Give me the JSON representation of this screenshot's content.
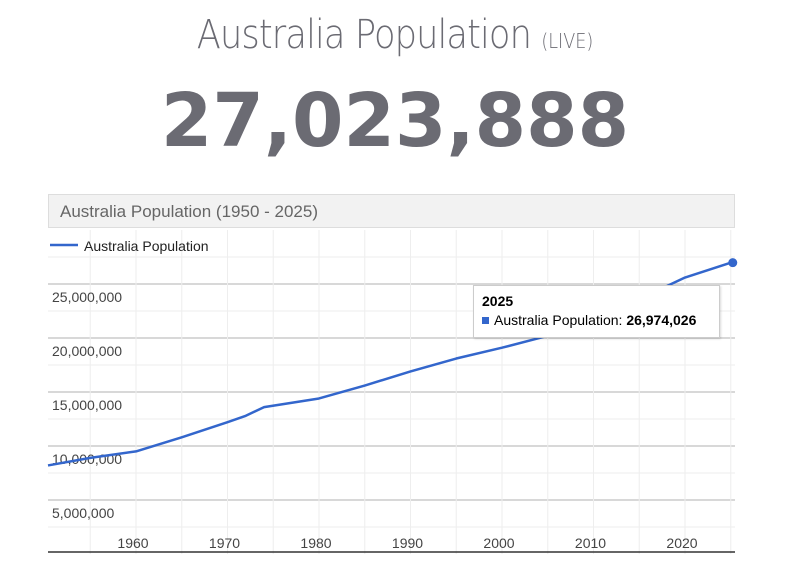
{
  "page": {
    "title": "Australia Population",
    "title_suffix": "(LIVE)",
    "counter": "27,023,888"
  },
  "chart_data": {
    "type": "line",
    "title": "Australia Population (1950 - 2025)",
    "legend": {
      "entries": [
        "Australia Population"
      ],
      "placement": "top-left"
    },
    "x": [
      1950,
      1955,
      1960,
      1965,
      1970,
      1972,
      1974,
      1980,
      1985,
      1990,
      1995,
      2000,
      2005,
      2010,
      2015,
      2020,
      2025
    ],
    "series": [
      {
        "name": "Australia Population",
        "color": "#3366cc",
        "values": [
          8200000,
          8900000,
          9500000,
          10800000,
          12200000,
          12800000,
          13600000,
          14400000,
          15600000,
          16900000,
          18100000,
          19100000,
          20200000,
          22000000,
          23600000,
          25600000,
          26974026
        ]
      }
    ],
    "xlim": [
      1950,
      2025
    ],
    "ylim": [
      0,
      30000000
    ],
    "x_ticks": [
      "1960",
      "1970",
      "1980",
      "1990",
      "2000",
      "2010",
      "2020"
    ],
    "y_ticks": [
      "5,000,000",
      "10,000,000",
      "15,000,000",
      "20,000,000",
      "25,000,000"
    ],
    "grid": true,
    "tooltip": {
      "year": "2025",
      "label": "Australia Population:",
      "value": "26,974,026"
    }
  }
}
